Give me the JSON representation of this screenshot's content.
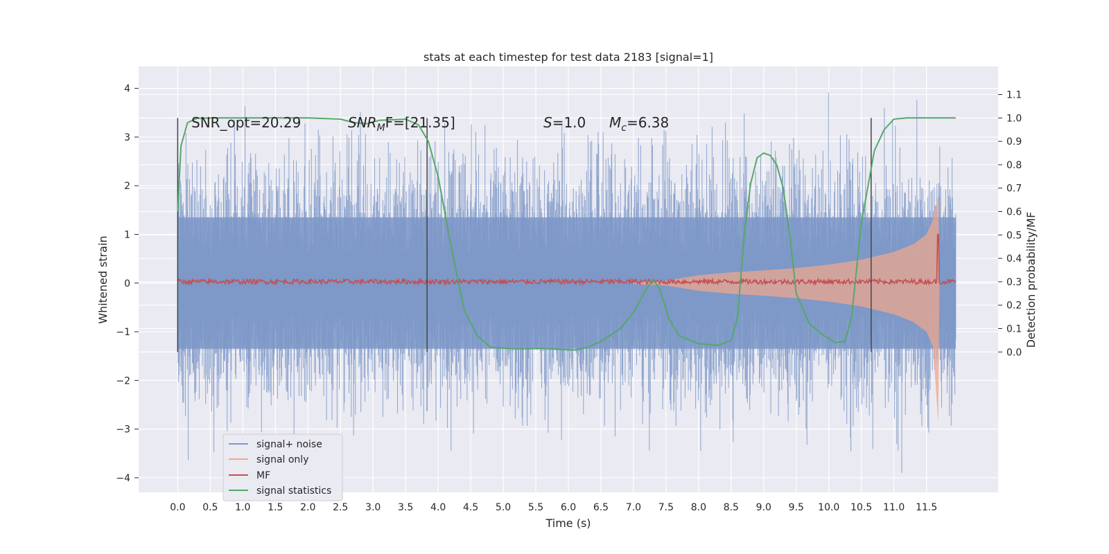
{
  "chart_data": {
    "type": "line",
    "title": "stats at each timestep for test data 2183 [signal=1]",
    "xlabel": "Time (s)",
    "ylabel": "Whitened strain",
    "y2label": "Detection probability/MF",
    "xlim": [
      -0.6,
      12.6
    ],
    "ylim": [
      -4.3,
      4.45
    ],
    "y2lim": [
      -0.6,
      1.22
    ],
    "x_ticks": [
      "0.0",
      "0.5",
      "1.0",
      "1.5",
      "2.0",
      "2.5",
      "3.0",
      "3.5",
      "4.0",
      "4.5",
      "5.0",
      "5.5",
      "6.0",
      "6.5",
      "7.0",
      "7.5",
      "8.0",
      "8.5",
      "9.0",
      "9.5",
      "10.0",
      "10.5",
      "11.0",
      "11.5"
    ],
    "y_ticks": [
      "4",
      "3",
      "2",
      "1",
      "0",
      "−1",
      "−2",
      "−3",
      "−4"
    ],
    "y2_ticks": [
      "1.1",
      "1.0",
      "0.9",
      "0.8",
      "0.7",
      "0.6",
      "0.5",
      "0.4",
      "0.3",
      "0.2",
      "0.1",
      "0.0"
    ],
    "grid": true,
    "legend_position": "lower-left",
    "annotations": {
      "snr_opt": "SNR_opt=20.29",
      "snr_mf_sym": "SNR",
      "snr_mf_sub": "M",
      "snr_mf_tail": "F=[21.35]",
      "s_sym": "S",
      "s_val": "=1.0",
      "mc_sym": "M",
      "mc_sub": "c",
      "mc_val": "=6.38"
    },
    "vertical_lines_x": [
      0.0,
      3.83,
      10.65
    ],
    "series": [
      {
        "name": "signal+ noise",
        "color": "#7b97c7",
        "description_range": [
          -3.9,
          4.1
        ]
      },
      {
        "name": "signal only",
        "color": "#eea78f",
        "envelope_t": [
          7.0,
          7.5,
          8.0,
          8.5,
          9.0,
          9.5,
          10.0,
          10.5,
          11.0,
          11.3,
          11.5,
          11.6,
          11.68,
          11.7
        ],
        "envelope_amp": [
          0.02,
          0.05,
          0.16,
          0.22,
          0.26,
          0.31,
          0.38,
          0.48,
          0.64,
          0.8,
          1.0,
          1.3,
          1.8,
          0.0
        ]
      },
      {
        "name": "MF",
        "color": "#c44e52",
        "baseline": 0.03,
        "peak_x": 11.68,
        "peak_y": 1.0
      },
      {
        "name": "signal statistics",
        "color": "#55a868",
        "x": [
          0.0,
          0.05,
          0.1,
          0.15,
          0.3,
          0.6,
          1.0,
          2.0,
          2.5,
          2.7,
          2.9,
          3.1,
          3.5,
          3.7,
          3.85,
          4.0,
          4.2,
          4.4,
          4.6,
          4.8,
          5.2,
          5.6,
          6.1,
          6.3,
          6.5,
          6.8,
          7.0,
          7.2,
          7.3,
          7.4,
          7.55,
          7.7,
          8.0,
          8.3,
          8.5,
          8.6,
          8.7,
          8.8,
          8.9,
          9.0,
          9.1,
          9.2,
          9.3,
          9.4,
          9.5,
          9.7,
          9.9,
          10.1,
          10.25,
          10.35,
          10.5,
          10.7,
          10.85,
          11.0,
          11.2,
          11.5,
          11.95
        ],
        "y": [
          0.6,
          0.88,
          0.93,
          0.98,
          0.999,
          1.0,
          1.0,
          1.0,
          0.995,
          0.98,
          0.975,
          0.99,
          0.995,
          0.97,
          0.9,
          0.75,
          0.45,
          0.18,
          0.07,
          0.02,
          0.013,
          0.015,
          0.008,
          0.02,
          0.045,
          0.1,
          0.17,
          0.27,
          0.31,
          0.27,
          0.14,
          0.07,
          0.035,
          0.028,
          0.05,
          0.15,
          0.5,
          0.72,
          0.83,
          0.85,
          0.84,
          0.8,
          0.7,
          0.5,
          0.25,
          0.12,
          0.075,
          0.04,
          0.045,
          0.15,
          0.55,
          0.86,
          0.95,
          0.995,
          1.0,
          1.0,
          1.0
        ]
      }
    ]
  }
}
